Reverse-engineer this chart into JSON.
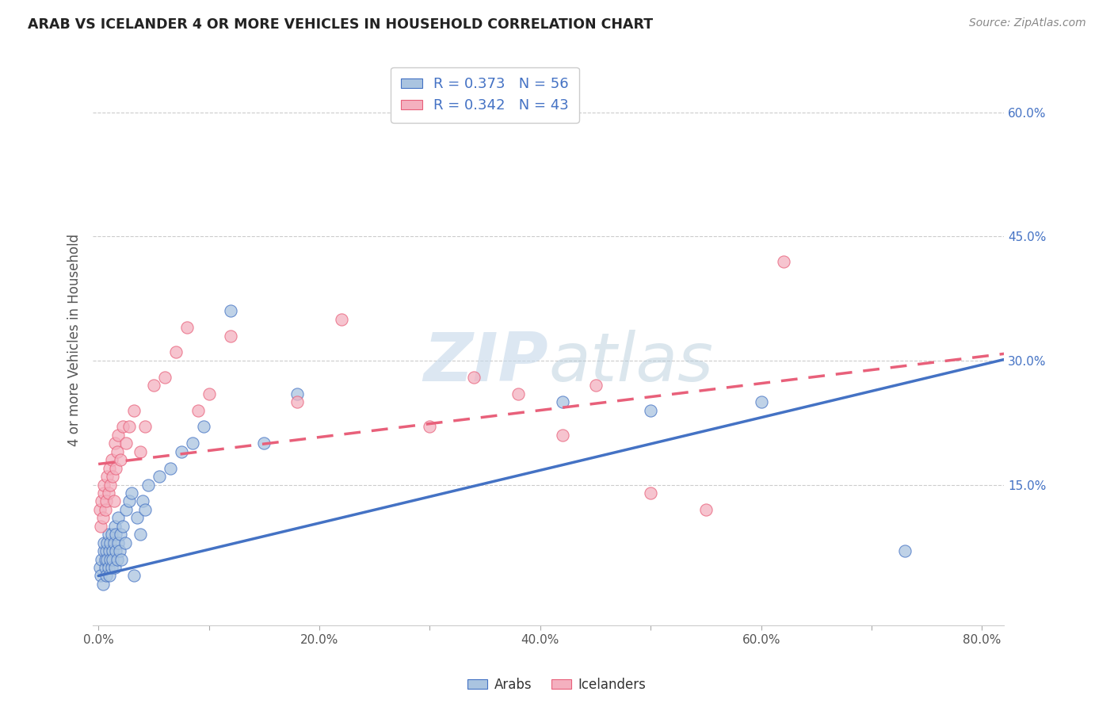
{
  "title": "ARAB VS ICELANDER 4 OR MORE VEHICLES IN HOUSEHOLD CORRELATION CHART",
  "source": "Source: ZipAtlas.com",
  "ylabel": "4 or more Vehicles in Household",
  "xlim": [
    -0.005,
    0.82
  ],
  "ylim": [
    -0.02,
    0.67
  ],
  "xtick_vals": [
    0.0,
    0.1,
    0.2,
    0.3,
    0.4,
    0.5,
    0.6,
    0.7,
    0.8
  ],
  "xtick_labels": [
    "0.0%",
    "",
    "20.0%",
    "",
    "40.0%",
    "",
    "60.0%",
    "",
    "80.0%"
  ],
  "ytick_vals": [
    0.15,
    0.3,
    0.45,
    0.6
  ],
  "ytick_labels": [
    "15.0%",
    "30.0%",
    "45.0%",
    "60.0%"
  ],
  "arab_color": "#aac4e0",
  "icelander_color": "#f4b0bf",
  "arab_line_color": "#4472c4",
  "icelander_line_color": "#e8607a",
  "legend_text_color": "#4472c4",
  "background_color": "#ffffff",
  "watermark_zip": "ZIP",
  "watermark_atlas": "atlas",
  "R_arab": 0.373,
  "N_arab": 56,
  "R_icelander": 0.342,
  "N_icelander": 43,
  "arab_scatter_x": [
    0.001,
    0.002,
    0.003,
    0.004,
    0.005,
    0.005,
    0.006,
    0.006,
    0.007,
    0.007,
    0.008,
    0.008,
    0.009,
    0.009,
    0.01,
    0.01,
    0.011,
    0.011,
    0.012,
    0.012,
    0.013,
    0.013,
    0.014,
    0.015,
    0.015,
    0.016,
    0.016,
    0.017,
    0.018,
    0.018,
    0.019,
    0.02,
    0.021,
    0.022,
    0.024,
    0.025,
    0.028,
    0.03,
    0.032,
    0.035,
    0.038,
    0.04,
    0.042,
    0.045,
    0.055,
    0.065,
    0.075,
    0.085,
    0.095,
    0.12,
    0.15,
    0.18,
    0.42,
    0.5,
    0.6,
    0.73
  ],
  "arab_scatter_y": [
    0.05,
    0.04,
    0.06,
    0.03,
    0.07,
    0.08,
    0.05,
    0.06,
    0.04,
    0.07,
    0.06,
    0.08,
    0.05,
    0.09,
    0.04,
    0.07,
    0.06,
    0.08,
    0.05,
    0.09,
    0.07,
    0.06,
    0.08,
    0.05,
    0.1,
    0.07,
    0.09,
    0.06,
    0.08,
    0.11,
    0.07,
    0.09,
    0.06,
    0.1,
    0.08,
    0.12,
    0.13,
    0.14,
    0.04,
    0.11,
    0.09,
    0.13,
    0.12,
    0.15,
    0.16,
    0.17,
    0.19,
    0.2,
    0.22,
    0.36,
    0.2,
    0.26,
    0.25,
    0.24,
    0.25,
    0.07
  ],
  "icelander_scatter_x": [
    0.001,
    0.002,
    0.003,
    0.004,
    0.005,
    0.005,
    0.006,
    0.007,
    0.008,
    0.009,
    0.01,
    0.011,
    0.012,
    0.013,
    0.014,
    0.015,
    0.016,
    0.017,
    0.018,
    0.02,
    0.022,
    0.025,
    0.028,
    0.032,
    0.038,
    0.042,
    0.05,
    0.06,
    0.07,
    0.08,
    0.09,
    0.1,
    0.12,
    0.18,
    0.22,
    0.3,
    0.34,
    0.38,
    0.42,
    0.45,
    0.5,
    0.55,
    0.62
  ],
  "icelander_scatter_y": [
    0.12,
    0.1,
    0.13,
    0.11,
    0.14,
    0.15,
    0.12,
    0.13,
    0.16,
    0.14,
    0.17,
    0.15,
    0.18,
    0.16,
    0.13,
    0.2,
    0.17,
    0.19,
    0.21,
    0.18,
    0.22,
    0.2,
    0.22,
    0.24,
    0.19,
    0.22,
    0.27,
    0.28,
    0.31,
    0.34,
    0.24,
    0.26,
    0.33,
    0.25,
    0.35,
    0.22,
    0.28,
    0.26,
    0.21,
    0.27,
    0.14,
    0.12,
    0.42
  ],
  "arab_line_x0": 0.0,
  "arab_line_y0": 0.04,
  "arab_line_x1": 0.8,
  "arab_line_y1": 0.295,
  "icel_line_x0": 0.0,
  "icel_line_y0": 0.175,
  "icel_line_x1": 0.8,
  "icel_line_y1": 0.305
}
